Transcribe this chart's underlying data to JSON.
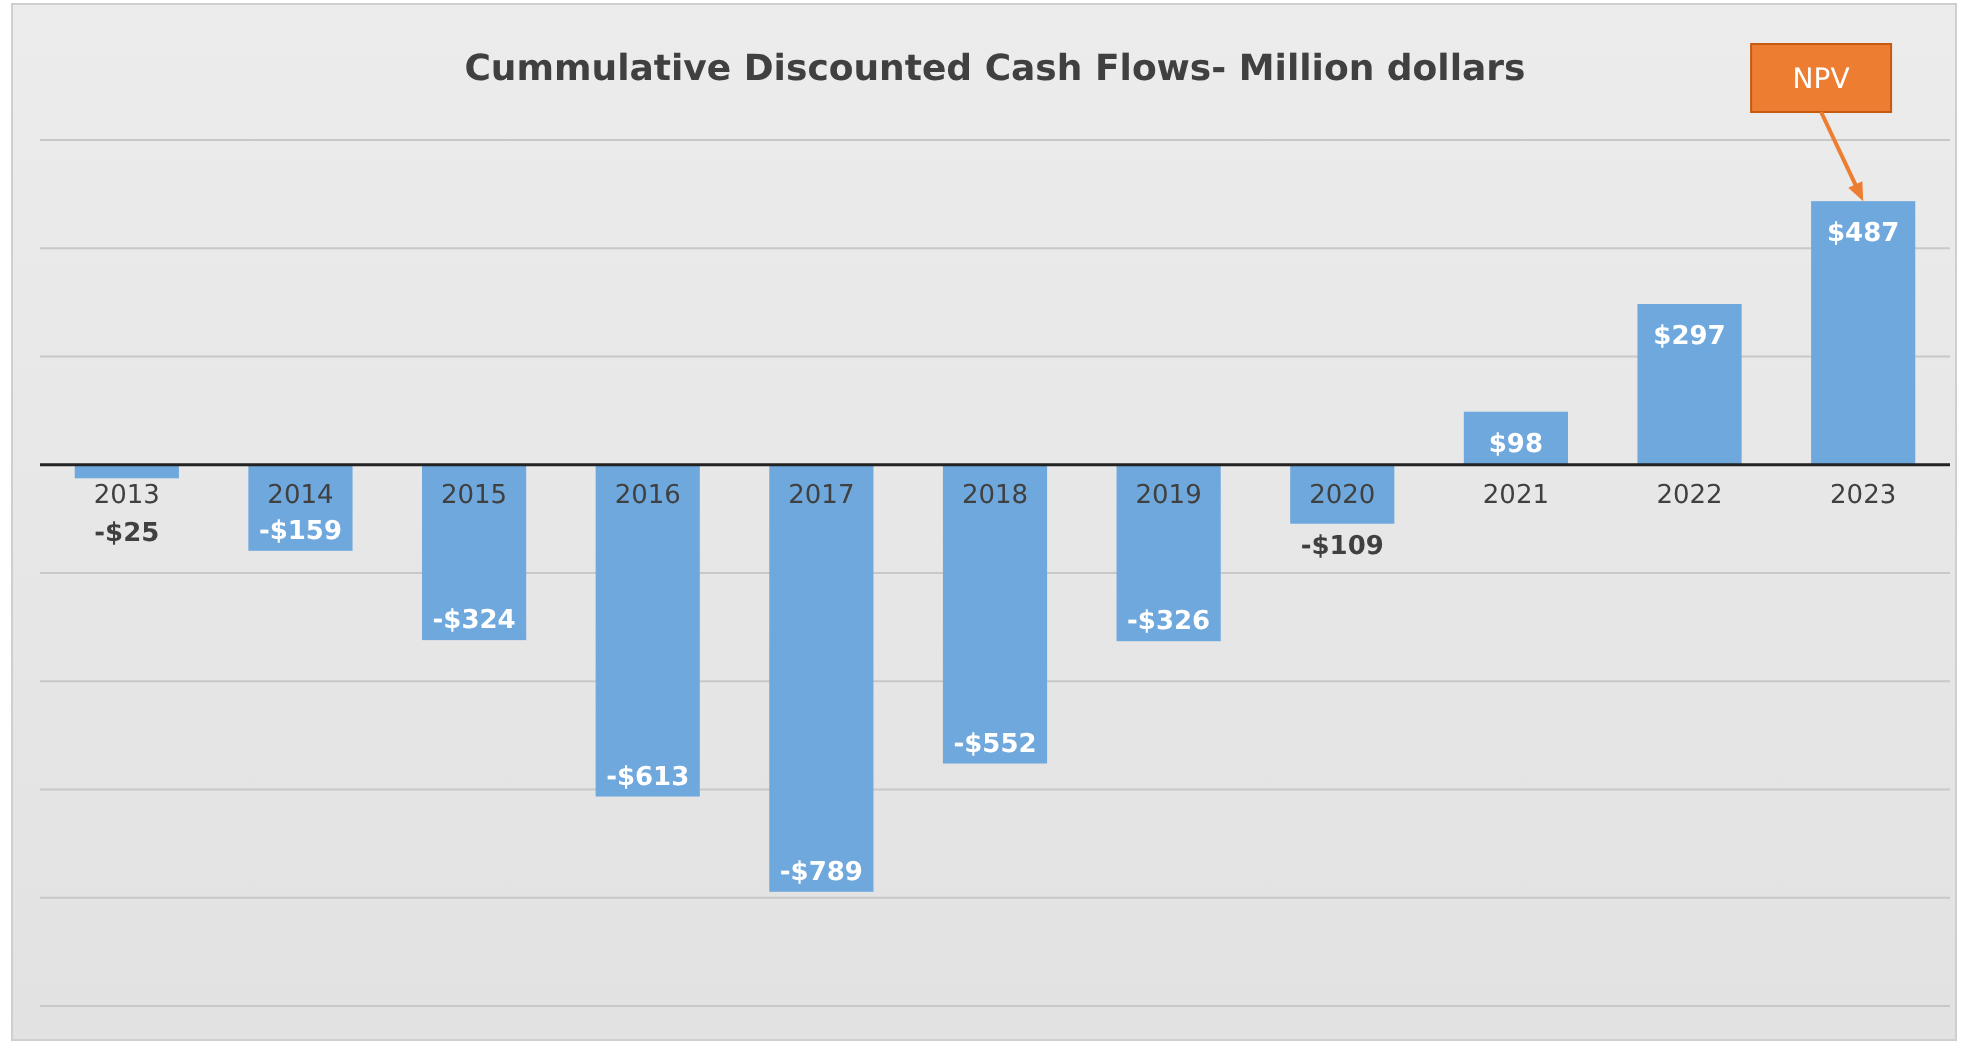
{
  "chart_data": {
    "type": "bar",
    "title": "Cummulative Discounted Cash Flows- Million dollars",
    "categories": [
      "2013",
      "2014",
      "2015",
      "2016",
      "2017",
      "2018",
      "2019",
      "2020",
      "2021",
      "2022",
      "2023"
    ],
    "values": [
      -25,
      -159,
      -324,
      -613,
      -789,
      -552,
      -326,
      -109,
      98,
      297,
      487
    ],
    "value_labels": [
      "-$25",
      "-$159",
      "-$324",
      "-$613",
      "-$789",
      "-$552",
      "-$326",
      "-$109",
      "$98",
      "$297",
      "$487"
    ],
    "color": "#6fa8dc",
    "ylim": [
      -1000,
      600
    ],
    "yticks": [
      {
        "value": -1000,
        "label": null
      },
      {
        "value": -800,
        "label": null
      },
      {
        "value": -600,
        "label": null
      },
      {
        "value": -400,
        "label": null
      },
      {
        "value": -200,
        "label": null
      },
      {
        "value": 0,
        "label": null
      },
      {
        "value": 200,
        "label": null
      },
      {
        "value": 400,
        "label": null
      },
      {
        "value": 600,
        "label": null
      }
    ],
    "tick_labels": "x",
    "grid": "y",
    "annotations": [
      {
        "text": "NPV",
        "x": "2023",
        "y": 487
      }
    ]
  }
}
